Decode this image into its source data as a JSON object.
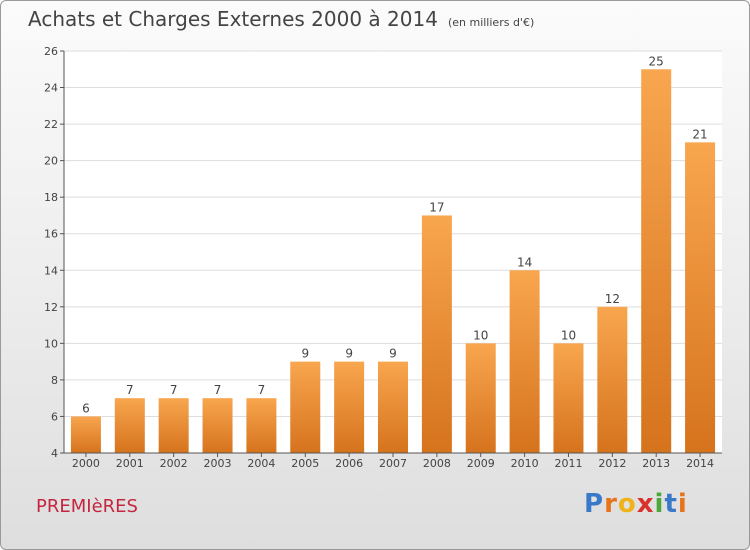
{
  "title": "Achats et Charges Externes 2000 à 2014",
  "unit_note": "(en milliers d'€)",
  "commune": "PREMIèRES",
  "logo": {
    "text": "Proxiti",
    "letters": [
      {
        "char": "P",
        "color": "#3a78c9"
      },
      {
        "char": "r",
        "color": "#e8731d"
      },
      {
        "char": "o",
        "color": "#f0b21a"
      },
      {
        "char": "x",
        "color": "#d9322b"
      },
      {
        "char": "i",
        "color": "#4aa839"
      },
      {
        "char": "t",
        "color": "#3a78c9"
      },
      {
        "char": "i",
        "color": "#e8731d"
      }
    ]
  },
  "colors": {
    "bar_light": "#f8a64f",
    "bar_dark": "#d6731d",
    "axis": "#555555",
    "grid": "#dddddd"
  },
  "chart_data": {
    "type": "bar",
    "categories": [
      "2000",
      "2001",
      "2002",
      "2003",
      "2004",
      "2005",
      "2006",
      "2007",
      "2008",
      "2009",
      "2010",
      "2011",
      "2012",
      "2013",
      "2014"
    ],
    "values": [
      6,
      7,
      7,
      7,
      7,
      9,
      9,
      9,
      17,
      10,
      14,
      10,
      12,
      25,
      21
    ],
    "ylim": [
      4,
      26
    ],
    "yticks": [
      4,
      6,
      8,
      10,
      12,
      14,
      16,
      18,
      20,
      22,
      24,
      26
    ],
    "grid": "horizontal",
    "data_labels": true
  }
}
